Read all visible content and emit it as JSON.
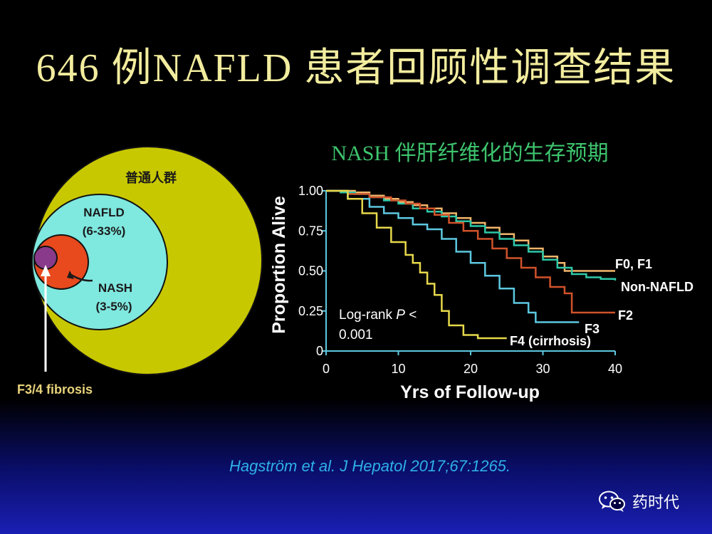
{
  "slide": {
    "title": "646 例NAFLD 患者回顾性调查结果",
    "citation": "Hagström et al. J Hepatol 2017;67:1265.",
    "watermark": "药时代",
    "watermark_icon": "wechat-icon"
  },
  "venn": {
    "outer_label": "普通人群",
    "nafld_label": "NAFLD",
    "nafld_range": "(6-33%)",
    "nash_label": "NASH",
    "nash_range": "(3-5%)",
    "fibrosis_label": "F3/4 fibrosis",
    "colors": {
      "outer": "#c8c800",
      "nafld": "#7fe8df",
      "nash": "#e8491d",
      "fibrosis": "#8a3a8a",
      "fibrosis_label": "#e8d37a"
    }
  },
  "chart_data": {
    "type": "line",
    "title": "NASH 伴肝纤维化的生存预期",
    "xlabel": "Yrs of Follow-up",
    "ylabel": "Proportion Alive",
    "xlim": [
      0,
      40
    ],
    "ylim": [
      0,
      1
    ],
    "x_ticks": [
      "0",
      "10",
      "20",
      "30",
      "40"
    ],
    "y_ticks": [
      "0",
      "0.25",
      "0.50",
      "0.75",
      "1.00"
    ],
    "annotation": "Log-rank P < 0.001",
    "annotation_line1": "Log-rank ",
    "annotation_p": "P",
    "annotation_line1_end": " <",
    "annotation_line2": "0.001",
    "grid": false,
    "series": [
      {
        "name": "F0, F1",
        "color": "#f2b56b",
        "points": [
          [
            0,
            1
          ],
          [
            2,
            1
          ],
          [
            4,
            0.99
          ],
          [
            6,
            0.97
          ],
          [
            8,
            0.95
          ],
          [
            10,
            0.93
          ],
          [
            12,
            0.91
          ],
          [
            14,
            0.89
          ],
          [
            16,
            0.86
          ],
          [
            18,
            0.83
          ],
          [
            20,
            0.8
          ],
          [
            22,
            0.77
          ],
          [
            24,
            0.73
          ],
          [
            26,
            0.69
          ],
          [
            28,
            0.64
          ],
          [
            30,
            0.59
          ],
          [
            32,
            0.55
          ],
          [
            33,
            0.5
          ],
          [
            35,
            0.5
          ],
          [
            40,
            0.5
          ]
        ]
      },
      {
        "name": "Non-NAFLD",
        "color": "#2ec8a8",
        "points": [
          [
            0,
            1
          ],
          [
            2,
            0.99
          ],
          [
            4,
            0.98
          ],
          [
            6,
            0.96
          ],
          [
            8,
            0.94
          ],
          [
            10,
            0.92
          ],
          [
            12,
            0.89
          ],
          [
            14,
            0.87
          ],
          [
            16,
            0.84
          ],
          [
            18,
            0.81
          ],
          [
            20,
            0.78
          ],
          [
            22,
            0.74
          ],
          [
            24,
            0.7
          ],
          [
            26,
            0.66
          ],
          [
            28,
            0.62
          ],
          [
            30,
            0.57
          ],
          [
            32,
            0.52
          ],
          [
            34,
            0.48
          ],
          [
            36,
            0.46
          ],
          [
            38,
            0.45
          ],
          [
            40,
            0.44
          ]
        ]
      },
      {
        "name": "F2",
        "color": "#d0522a",
        "points": [
          [
            0,
            1
          ],
          [
            3,
            0.98
          ],
          [
            6,
            0.96
          ],
          [
            9,
            0.94
          ],
          [
            11,
            0.92
          ],
          [
            13,
            0.89
          ],
          [
            15,
            0.85
          ],
          [
            17,
            0.8
          ],
          [
            19,
            0.75
          ],
          [
            21,
            0.7
          ],
          [
            23,
            0.64
          ],
          [
            25,
            0.58
          ],
          [
            27,
            0.52
          ],
          [
            29,
            0.46
          ],
          [
            31,
            0.4
          ],
          [
            33,
            0.36
          ],
          [
            34,
            0.3
          ],
          [
            34,
            0.24
          ],
          [
            40,
            0.24
          ]
        ]
      },
      {
        "name": "F3",
        "color": "#5cc8e0",
        "points": [
          [
            0,
            1
          ],
          [
            3,
            0.95
          ],
          [
            6,
            0.9
          ],
          [
            8,
            0.86
          ],
          [
            10,
            0.83
          ],
          [
            12,
            0.79
          ],
          [
            14,
            0.76
          ],
          [
            16,
            0.7
          ],
          [
            18,
            0.62
          ],
          [
            20,
            0.55
          ],
          [
            22,
            0.47
          ],
          [
            24,
            0.39
          ],
          [
            26,
            0.3
          ],
          [
            28,
            0.24
          ],
          [
            29,
            0.18
          ],
          [
            35,
            0.18
          ]
        ]
      },
      {
        "name": "F4 (cirrhosis)",
        "color": "#e6d84a",
        "points": [
          [
            0,
            1
          ],
          [
            3,
            0.95
          ],
          [
            5,
            0.86
          ],
          [
            7,
            0.77
          ],
          [
            9,
            0.68
          ],
          [
            11,
            0.6
          ],
          [
            12,
            0.55
          ],
          [
            13,
            0.49
          ],
          [
            14,
            0.42
          ],
          [
            15,
            0.35
          ],
          [
            16,
            0.25
          ],
          [
            17,
            0.16
          ],
          [
            19,
            0.1
          ],
          [
            21,
            0.08
          ],
          [
            25,
            0.08
          ]
        ]
      }
    ],
    "series_labels": [
      "F0, F1",
      "Non-NAFLD",
      "F2",
      "F3",
      "F4 (cirrhosis)"
    ]
  }
}
